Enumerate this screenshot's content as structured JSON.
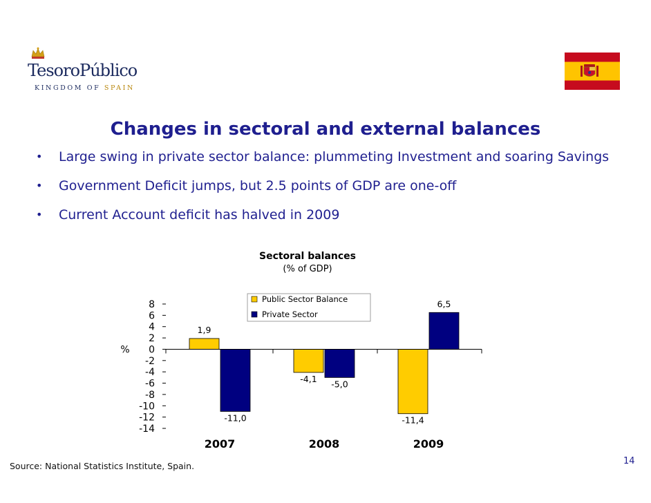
{
  "logo": {
    "name_part1": "Tesoro",
    "name_part2": "Público",
    "sub_part1": "KINGDOM OF ",
    "sub_part2": "SPAIN"
  },
  "slide": {
    "title": "Changes in sectoral and external balances",
    "bullets": [
      "Large swing in private sector balance: plummeting Investment and soaring Savings",
      "Government Deficit jumps, but 2.5 points of GDP are one-off",
      "Current Account deficit has halved in 2009"
    ],
    "source": "Source: National Statistics Institute, Spain.",
    "page_number": "14"
  },
  "colors": {
    "accent": "#1f1f8f",
    "public_bar": "#ffcc00",
    "private_bar": "#000080",
    "flag_red": "#c60b1e",
    "flag_yellow": "#ffc400"
  },
  "chart_data": {
    "type": "bar",
    "title": "Sectoral balances",
    "subtitle": "(% of GDP)",
    "ylabel": "%",
    "xlabel": "",
    "categories": [
      "2007",
      "2008",
      "2009"
    ],
    "series": [
      {
        "name": "Public Sector Balance",
        "values": [
          1.9,
          -4.1,
          -11.4
        ],
        "labels": [
          "1,9",
          "-4,1",
          "-11,4"
        ]
      },
      {
        "name": "Private Sector",
        "values": [
          -11.0,
          -5.0,
          6.5
        ],
        "labels": [
          "-11,0",
          "-5,0",
          "6,5"
        ]
      }
    ],
    "ylim": [
      -14,
      8
    ],
    "yticks": [
      8,
      6,
      4,
      2,
      0,
      -2,
      -4,
      -6,
      -8,
      -10,
      -12,
      -14
    ],
    "legend_position": "top-center",
    "grid": false
  }
}
